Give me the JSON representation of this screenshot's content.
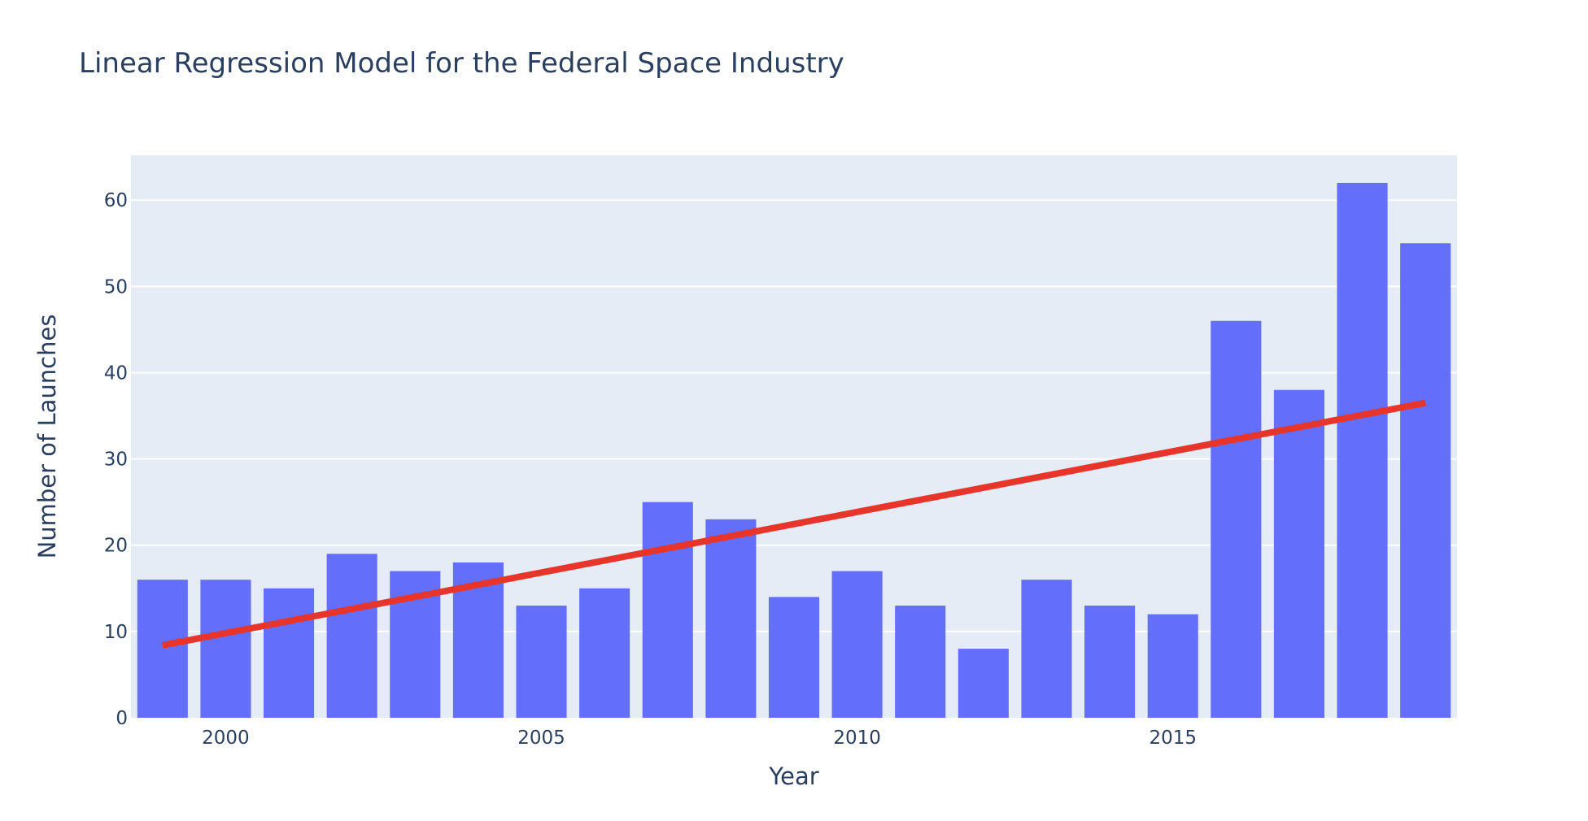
{
  "chart_data": {
    "type": "bar",
    "title": "Linear Regression Model for the Federal Space Industry",
    "xlabel": "Year",
    "ylabel": "Number of Launches",
    "x": [
      1999,
      2000,
      2001,
      2002,
      2003,
      2004,
      2005,
      2006,
      2007,
      2008,
      2009,
      2010,
      2011,
      2012,
      2013,
      2014,
      2015,
      2016,
      2017,
      2018,
      2019
    ],
    "series": [
      {
        "type": "bar",
        "color": "#636efa",
        "values": [
          16,
          16,
          15,
          19,
          17,
          18,
          13,
          15,
          25,
          23,
          14,
          17,
          13,
          8,
          16,
          13,
          12,
          46,
          38,
          62,
          55
        ]
      },
      {
        "type": "line",
        "color": "#e8352b",
        "x": [
          1999,
          2019
        ],
        "values": [
          8.4,
          36.5
        ]
      }
    ],
    "xlim": [
      1998.5,
      2019.5
    ],
    "ylim": [
      0,
      65.2
    ],
    "xticks": [
      2000,
      2005,
      2010,
      2015
    ],
    "yticks": [
      0,
      10,
      20,
      30,
      40,
      50,
      60
    ],
    "grid": true,
    "plot_background": "#e5ecf6",
    "gridline_color": "#ffffff"
  }
}
